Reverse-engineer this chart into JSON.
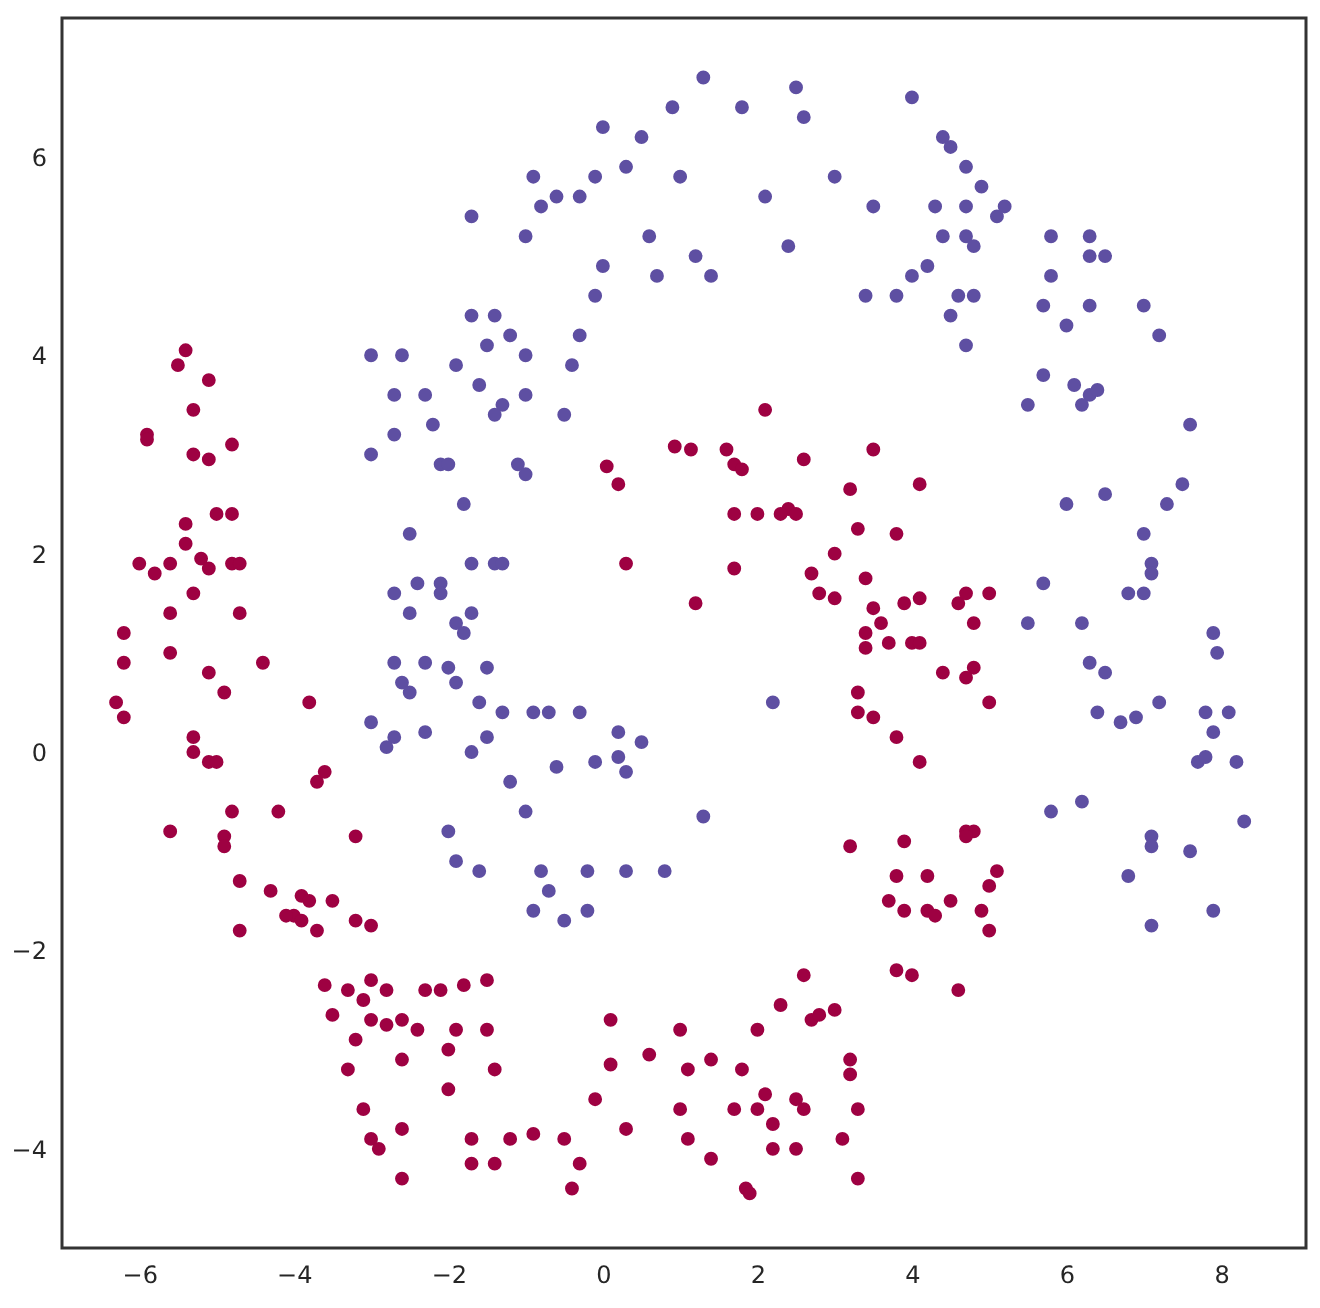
{
  "chart_data": {
    "type": "scatter",
    "marker": "circle",
    "grid": false,
    "xlim": [
      -7.0,
      9.1
    ],
    "ylim": [
      -5.0,
      7.4
    ],
    "xticks": [
      -6,
      -4,
      -2,
      0,
      2,
      4,
      6,
      8
    ],
    "yticks": [
      -4,
      -2,
      0,
      2,
      4,
      6
    ],
    "series": [
      {
        "color": "#5e4fa2",
        "x": [
          1.3,
          2.5,
          4.0,
          0.9,
          0.5,
          1.8,
          2.6,
          0.0,
          0.3,
          -0.1,
          -0.3,
          4.4,
          4.5,
          4.7,
          4.9,
          5.2,
          5.1,
          2.1,
          1.0,
          3.0,
          3.5,
          4.3,
          4.7,
          -0.9,
          -0.8,
          -0.6,
          -1.7,
          -1.0,
          0.6,
          1.2,
          1.4,
          0.0,
          2.4,
          0.7,
          -0.1,
          3.4,
          4.0,
          4.2,
          4.4,
          4.7,
          4.8,
          4.5,
          4.6,
          3.8,
          4.7,
          5.8,
          6.3,
          6.3,
          6.5,
          5.8,
          5.7,
          6.3,
          7.0,
          7.2,
          5.7,
          6.1,
          6.3,
          6.4,
          6.2,
          5.5,
          7.6,
          4.8,
          6.0,
          -3.0,
          -2.6,
          -3.0,
          -2.7,
          -2.3,
          -2.7,
          -2.2,
          -1.7,
          -1.4,
          -1.5,
          -1.2,
          -1.0,
          -1.3,
          -1.4,
          -1.6,
          -1.9,
          -1.0,
          -0.3,
          -0.4,
          -2.1,
          -2.0,
          -2.5,
          -1.8,
          -1.1,
          -1.0,
          -0.5,
          -2.7,
          -2.4,
          -2.1,
          -1.7,
          -1.4,
          -1.3,
          -1.7,
          -1.9,
          -2.1,
          -1.8,
          -2.5,
          -2.7,
          -2.3,
          -2.0,
          -1.5,
          -1.9,
          -2.6,
          -2.5,
          -3.0,
          -2.7,
          -2.3,
          -2.8,
          -1.6,
          -1.5,
          -1.3,
          -1.7,
          -1.2,
          -0.9,
          -0.7,
          -0.3,
          0.2,
          -0.1,
          0.2,
          0.5,
          0.3,
          -0.6,
          -1.0,
          -2.0,
          -1.9,
          -1.6,
          -0.8,
          -0.2,
          0.3,
          0.8,
          -0.7,
          -0.2,
          -0.9,
          -0.5,
          1.3,
          2.2,
          6.0,
          6.5,
          7.0,
          7.3,
          7.5,
          7.1,
          7.1,
          6.8,
          7.0,
          5.7,
          5.5,
          6.2,
          7.9,
          7.95,
          6.3,
          6.5,
          6.4,
          6.9,
          7.2,
          6.7,
          7.8,
          8.1,
          7.9,
          7.7,
          7.8,
          8.2,
          5.8,
          6.2,
          8.3,
          7.1,
          7.1,
          7.6,
          6.8,
          7.9,
          7.1
        ],
        "values": [
          6.8,
          6.7,
          6.6,
          6.5,
          6.2,
          6.5,
          6.4,
          6.3,
          5.9,
          5.8,
          5.6,
          6.2,
          6.1,
          5.9,
          5.7,
          5.5,
          5.4,
          5.6,
          5.8,
          5.8,
          5.5,
          5.5,
          5.5,
          5.8,
          5.5,
          5.6,
          5.4,
          5.2,
          5.2,
          5.0,
          4.8,
          4.9,
          5.1,
          4.8,
          4.6,
          4.6,
          4.8,
          4.9,
          5.2,
          5.2,
          5.1,
          4.4,
          4.6,
          4.6,
          4.1,
          5.2,
          5.2,
          5.0,
          5.0,
          4.8,
          4.5,
          4.5,
          4.5,
          4.2,
          3.8,
          3.7,
          3.6,
          3.65,
          3.5,
          3.5,
          3.3,
          4.6,
          4.3,
          4.0,
          4.0,
          3.0,
          3.6,
          3.6,
          3.2,
          3.3,
          4.4,
          4.4,
          4.1,
          4.2,
          4.0,
          3.5,
          3.4,
          3.7,
          3.9,
          3.6,
          4.2,
          3.9,
          2.9,
          2.9,
          2.2,
          2.5,
          2.9,
          2.8,
          3.4,
          1.6,
          1.7,
          1.7,
          1.9,
          1.9,
          1.9,
          1.4,
          1.3,
          1.6,
          1.2,
          1.4,
          0.9,
          0.9,
          0.85,
          0.85,
          0.7,
          0.7,
          0.6,
          0.3,
          0.15,
          0.2,
          0.05,
          0.5,
          0.15,
          0.4,
          0.0,
          -0.3,
          0.4,
          0.4,
          0.4,
          0.2,
          -0.1,
          -0.05,
          0.1,
          -0.2,
          -0.15,
          -0.6,
          -0.8,
          -1.1,
          -1.2,
          -1.2,
          -1.2,
          -1.2,
          -1.2,
          -1.4,
          -1.6,
          -1.6,
          -1.7,
          -0.65,
          0.5,
          2.5,
          2.6,
          2.2,
          2.5,
          2.7,
          1.9,
          1.8,
          1.6,
          1.6,
          1.7,
          1.3,
          1.3,
          1.2,
          1.0,
          0.9,
          0.8,
          0.4,
          0.35,
          0.5,
          0.3,
          0.4,
          0.4,
          0.2,
          -0.1,
          -0.05,
          -0.1,
          -0.6,
          -0.5,
          -0.7,
          -0.85,
          -0.95,
          -1.0,
          -1.25,
          -1.6,
          -1.75
        ]
      },
      {
        "color": "#9e0142",
        "x": [
          -5.4,
          -5.5,
          -5.1,
          -5.3,
          -4.8,
          -5.9,
          -5.9,
          -5.3,
          -5.1,
          -5.0,
          -4.8,
          -5.4,
          -5.4,
          -5.6,
          -5.2,
          -5.1,
          -4.8,
          -4.7,
          -6.0,
          -5.8,
          -5.3,
          -5.6,
          -4.7,
          -6.2,
          -6.2,
          -5.6,
          -4.4,
          -5.1,
          -4.9,
          -6.3,
          -6.2,
          -5.3,
          -5.3,
          -5.1,
          -5.0,
          -3.8,
          -3.7,
          -3.6,
          -4.8,
          -4.2,
          -5.6,
          -4.9,
          -4.9,
          -3.2,
          -4.7,
          -4.3,
          -3.9,
          -3.8,
          -4.0,
          -4.1,
          -3.5,
          -3.9,
          -4.7,
          -3.7,
          -3.2,
          -3.0,
          -3.6,
          -3.0,
          -3.1,
          -3.0,
          -2.8,
          -2.4,
          -3.3,
          -3.5,
          -3.3,
          -3.2,
          -2.8,
          -2.6,
          -2.3,
          -2.1,
          -1.8,
          -1.5,
          -1.9,
          -2.0,
          -1.5,
          -1.4,
          -2.0,
          -3.1,
          -2.6,
          -3.0,
          -2.9,
          -2.6,
          -2.6,
          -1.7,
          -1.2,
          -0.9,
          -0.5,
          -1.7,
          -1.4,
          -0.3,
          -0.4,
          -0.1,
          0.1,
          0.3,
          0.1,
          0.6,
          1.0,
          1.1,
          1.4,
          1.8,
          2.0,
          1.0,
          1.1,
          1.4,
          1.7,
          2.1,
          2.0,
          2.2,
          2.2,
          1.85,
          1.9,
          2.5,
          2.5,
          2.6,
          2.7,
          2.8,
          2.6,
          2.3,
          3.0,
          3.2,
          3.2,
          3.3,
          3.1,
          3.3,
          3.8,
          4.0,
          4.6,
          3.9,
          4.2,
          4.3,
          3.8,
          3.7,
          4.2,
          4.8,
          4.7,
          4.5,
          4.9,
          5.0,
          5.1,
          3.2,
          3.9,
          4.7,
          5.0,
          2.1,
          1.6,
          2.6,
          3.5,
          0.93,
          1.14,
          1.7,
          1.8,
          2.4,
          2.5,
          2.3,
          1.7,
          2.0,
          3.2,
          4.1,
          3.8,
          3.0,
          3.3,
          0.3,
          1.2,
          1.7,
          2.7,
          2.8,
          3.0,
          3.4,
          3.5,
          3.9,
          4.1,
          3.4,
          3.4,
          3.6,
          3.7,
          4.0,
          4.1,
          4.6,
          4.7,
          5.0,
          4.8,
          4.8,
          4.7,
          5.0,
          4.4,
          3.3,
          3.3,
          3.5,
          3.8,
          4.1,
          0.05,
          0.2
        ],
        "values": [
          4.05,
          3.9,
          3.75,
          3.45,
          3.1,
          3.2,
          3.15,
          3.0,
          2.95,
          2.4,
          2.4,
          2.3,
          2.1,
          1.9,
          1.95,
          1.85,
          1.9,
          1.9,
          1.9,
          1.8,
          1.6,
          1.4,
          1.4,
          1.2,
          0.9,
          1.0,
          0.9,
          0.8,
          0.6,
          0.5,
          0.35,
          0.15,
          0.0,
          -0.1,
          -0.1,
          0.5,
          -0.3,
          -0.2,
          -0.6,
          -0.6,
          -0.8,
          -0.85,
          -0.95,
          -0.85,
          -1.3,
          -1.4,
          -1.45,
          -1.5,
          -1.65,
          -1.65,
          -1.5,
          -1.7,
          -1.8,
          -1.8,
          -1.7,
          -1.75,
          -2.35,
          -2.3,
          -2.5,
          -2.7,
          -2.75,
          -2.8,
          -2.4,
          -2.65,
          -3.2,
          -2.9,
          -2.4,
          -2.7,
          -2.4,
          -2.4,
          -2.35,
          -2.3,
          -2.8,
          -3.0,
          -2.8,
          -3.2,
          -3.4,
          -3.6,
          -3.1,
          -3.9,
          -4.0,
          -3.8,
          -4.3,
          -3.9,
          -3.9,
          -3.85,
          -3.9,
          -4.15,
          -4.15,
          -4.15,
          -4.4,
          -3.5,
          -3.15,
          -3.8,
          -2.7,
          -3.05,
          -2.8,
          -3.2,
          -3.1,
          -3.2,
          -2.8,
          -3.6,
          -3.9,
          -4.1,
          -3.6,
          -3.45,
          -3.6,
          -3.75,
          -4.0,
          -4.4,
          -4.45,
          -3.5,
          -4.0,
          -3.6,
          -2.7,
          -2.65,
          -2.25,
          -2.55,
          -2.6,
          -3.1,
          -3.25,
          -3.6,
          -3.9,
          -4.3,
          -2.2,
          -2.25,
          -2.4,
          -1.6,
          -1.6,
          -1.65,
          -1.25,
          -1.5,
          -1.25,
          -0.8,
          -0.8,
          -1.5,
          -1.6,
          -1.8,
          -1.2,
          -0.95,
          -0.9,
          -0.85,
          -1.35,
          3.45,
          3.05,
          2.95,
          3.05,
          3.08,
          3.05,
          2.9,
          2.85,
          2.45,
          2.4,
          2.4,
          2.4,
          2.4,
          2.65,
          2.7,
          2.2,
          2.0,
          2.25,
          1.9,
          1.5,
          1.85,
          1.8,
          1.6,
          1.55,
          1.75,
          1.45,
          1.5,
          1.55,
          1.2,
          1.05,
          1.3,
          1.1,
          1.1,
          1.1,
          1.5,
          1.6,
          1.6,
          1.3,
          0.85,
          0.75,
          0.5,
          0.8,
          0.6,
          0.4,
          0.35,
          0.15,
          -0.1,
          2.88,
          2.7
        ]
      }
    ]
  }
}
